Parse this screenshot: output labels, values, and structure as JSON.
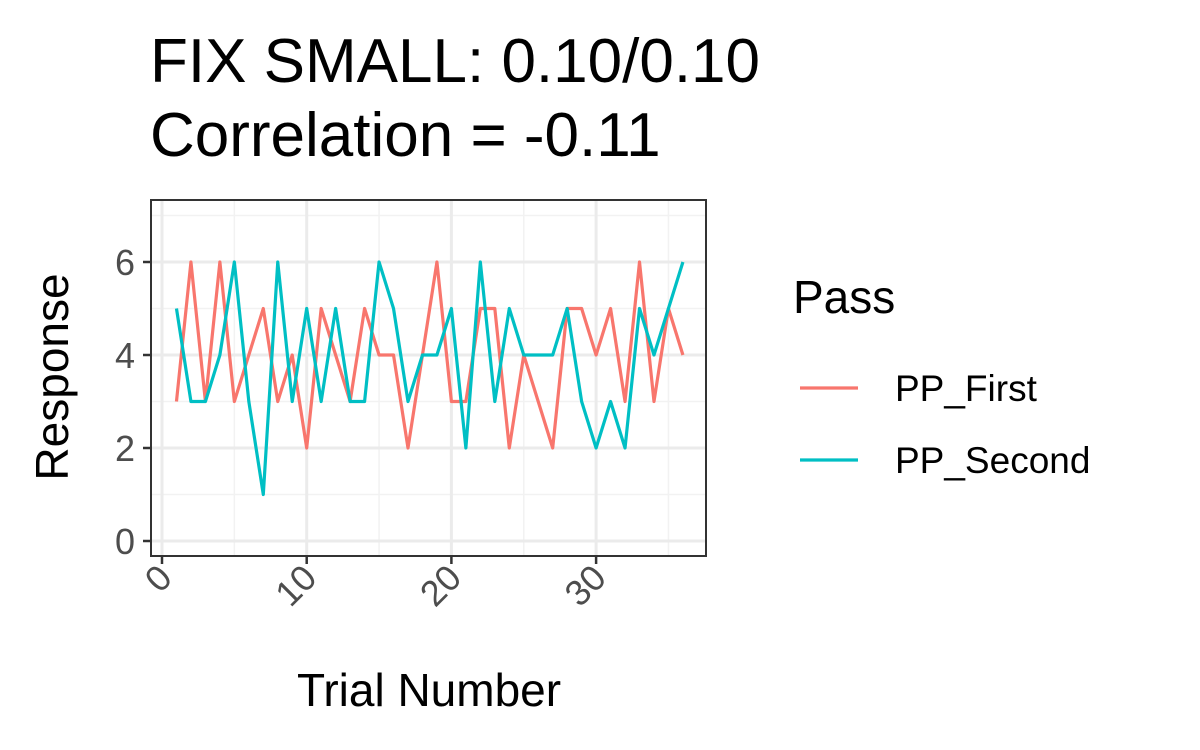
{
  "chart_data": {
    "type": "line",
    "title": "FIX SMALL: 0.10/0.10",
    "subtitle": "Correlation =  -0.11",
    "xlabel": "Trial Number",
    "ylabel": "Response",
    "xlim": [
      0,
      36
    ],
    "ylim": [
      0,
      7
    ],
    "x_ticks": [
      0,
      10,
      20,
      30
    ],
    "y_ticks": [
      0,
      2,
      4,
      6
    ],
    "grid": true,
    "legend": {
      "title": "Pass",
      "placement": "right"
    },
    "x": [
      1,
      2,
      3,
      4,
      5,
      6,
      7,
      8,
      9,
      10,
      11,
      12,
      13,
      14,
      15,
      16,
      17,
      18,
      19,
      20,
      21,
      22,
      23,
      24,
      25,
      26,
      27,
      28,
      29,
      30,
      31,
      32,
      33,
      34,
      35,
      36
    ],
    "series": [
      {
        "name": "PP_First",
        "color": "#F8766D",
        "values": [
          3,
          6,
          3,
          6,
          3,
          4,
          5,
          3,
          4,
          2,
          5,
          4,
          3,
          5,
          4,
          4,
          2,
          4,
          6,
          3,
          3,
          5,
          5,
          2,
          4,
          3,
          2,
          5,
          5,
          4,
          5,
          3,
          6,
          3,
          5,
          4
        ]
      },
      {
        "name": "PP_Second",
        "color": "#00BFC4",
        "values": [
          5,
          3,
          3,
          4,
          6,
          3,
          1,
          6,
          3,
          5,
          3,
          5,
          3,
          3,
          6,
          5,
          3,
          4,
          4,
          5,
          2,
          6,
          3,
          5,
          4,
          4,
          4,
          5,
          3,
          2,
          3,
          2,
          5,
          4,
          5,
          6
        ]
      }
    ]
  }
}
